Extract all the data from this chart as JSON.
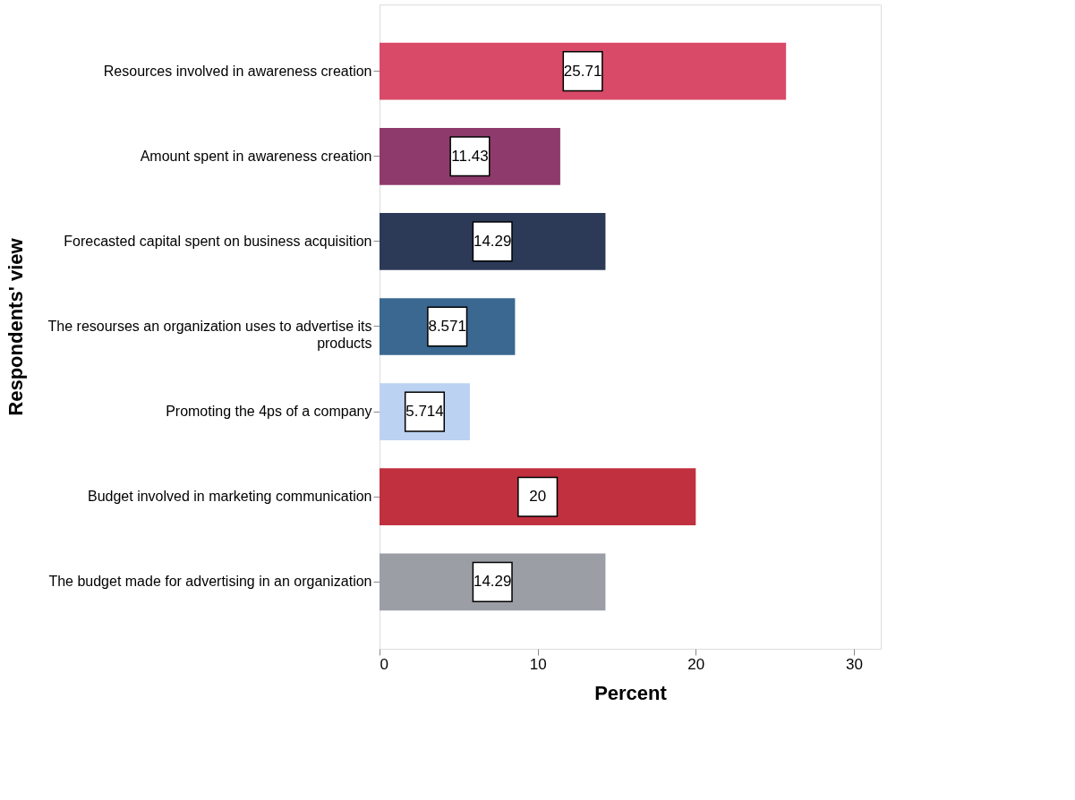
{
  "chart_data": {
    "type": "bar",
    "orientation": "horizontal",
    "xlabel": "Percent",
    "ylabel": "Respondents' view",
    "categories": [
      "Resources involved in awareness creation",
      "Amount spent in awareness creation",
      "Forecasted capital spent on business acquisition",
      "The resourses an organization uses to advertise its products",
      "Promoting the 4ps of a company",
      "Budget involved  in marketing communication",
      "The budget made for advertising in an organization"
    ],
    "values": [
      25.71,
      11.43,
      14.29,
      8.571,
      5.714,
      20,
      14.29
    ],
    "colors": [
      "#d84a68",
      "#8e3a6c",
      "#2c3a58",
      "#3a6890",
      "#bcd2f2",
      "#c0303f",
      "#9c9ea6"
    ],
    "xlim": [
      0,
      31.7
    ],
    "xticks": [
      0,
      10,
      20,
      30
    ],
    "data_labels": true,
    "grid": false
  }
}
